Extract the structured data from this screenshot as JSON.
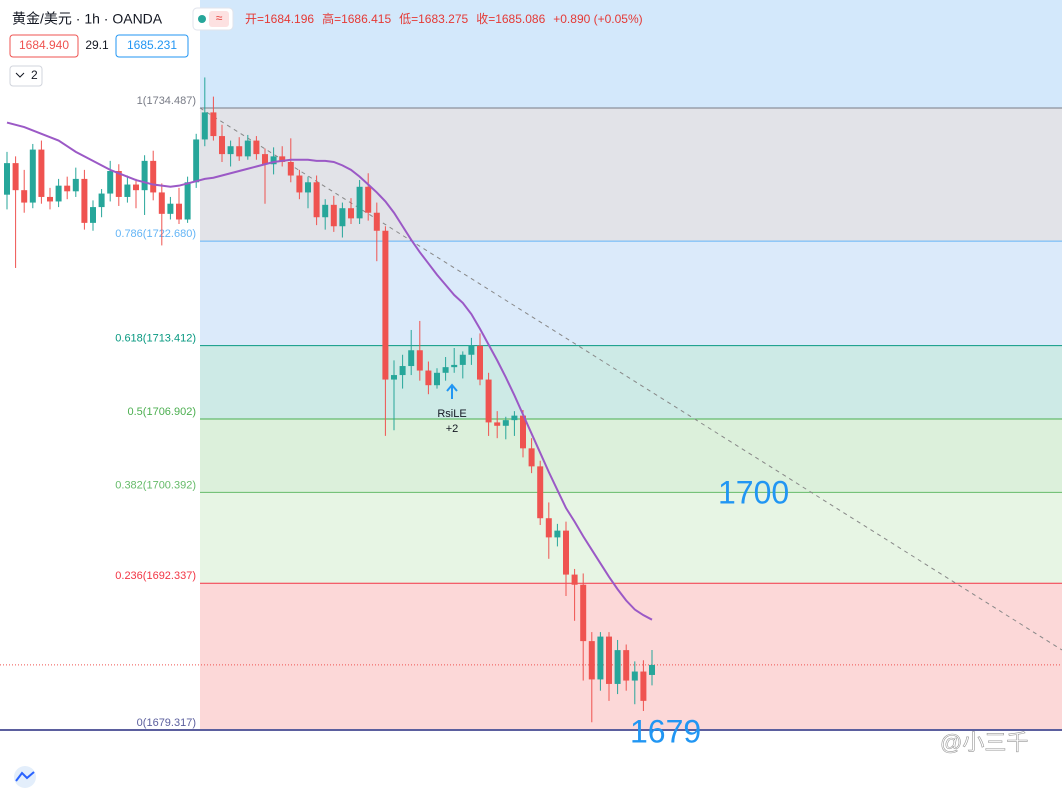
{
  "chart_data": {
    "type": "candlestick",
    "title": "黄金/美元 · 1h · OANDA",
    "stats": [
      "开=1684.196",
      "高=1686.415",
      "低=1683.275",
      "收=1685.086",
      "+0.890 (+0.05%)"
    ],
    "sell_price": "1684.940",
    "spread": "29.1",
    "buy_price": "1685.231",
    "indicator_count": "2",
    "ylim": [
      1674.08,
      1744.07
    ],
    "up_color": "#26a69a",
    "down_color": "#ef5350",
    "open": [
      1726.8,
      1729.6,
      1727.2,
      1726.1,
      1730.8,
      1726.6,
      1726.2,
      1727.6,
      1727.1,
      1728.2,
      1724.3,
      1725.7,
      1726.9,
      1728.9,
      1726.6,
      1727.7,
      1727.2,
      1729.8,
      1727.0,
      1725.1,
      1726.0,
      1724.6,
      1727.9,
      1731.7,
      1734.1,
      1732.0,
      1730.4,
      1731.1,
      1730.2,
      1731.6,
      1730.4,
      1729.5,
      1730.2,
      1729.7,
      1728.5,
      1727.0,
      1727.9,
      1724.8,
      1725.9,
      1724.0,
      1725.6,
      1724.7,
      1727.5,
      1725.2,
      1723.6,
      1710.4,
      1710.8,
      1711.6,
      1713.0,
      1711.2,
      1709.9,
      1711.0,
      1711.5,
      1711.7,
      1712.6,
      1713.4,
      1710.4,
      1706.6,
      1706.3,
      1706.8,
      1707.2,
      1704.3,
      1702.7,
      1698.1,
      1696.4,
      1697.0,
      1693.1,
      1692.2,
      1687.2,
      1683.8,
      1687.6,
      1683.4,
      1686.4,
      1683.7,
      1684.5,
      1684.196
    ],
    "high": [
      1730.6,
      1730.2,
      1729.0,
      1731.3,
      1731.6,
      1727.4,
      1728.2,
      1728.4,
      1729.2,
      1729.0,
      1726.3,
      1727.3,
      1729.8,
      1729.5,
      1728.5,
      1728.2,
      1730.3,
      1730.7,
      1727.8,
      1726.6,
      1727.4,
      1728.4,
      1732.2,
      1737.2,
      1735.5,
      1733.0,
      1731.6,
      1731.9,
      1732.1,
      1732.0,
      1730.9,
      1731.0,
      1731.1,
      1731.8,
      1729.0,
      1728.4,
      1728.5,
      1726.4,
      1726.7,
      1726.1,
      1726.5,
      1728.1,
      1728.7,
      1726.1,
      1724.0,
      1712.1,
      1712.6,
      1714.8,
      1715.6,
      1712.0,
      1711.4,
      1712.4,
      1713.2,
      1712.9,
      1714.1,
      1714.5,
      1711.0,
      1707.6,
      1707.1,
      1707.6,
      1707.7,
      1705.2,
      1703.2,
      1699.5,
      1697.6,
      1697.8,
      1693.6,
      1693.2,
      1688.0,
      1688.0,
      1688.0,
      1687.3,
      1686.9,
      1685.4,
      1685.5,
      1686.415
    ],
    "low": [
      1725.5,
      1720.3,
      1725.2,
      1725.6,
      1726.0,
      1725.5,
      1725.7,
      1726.4,
      1726.6,
      1723.7,
      1723.6,
      1724.8,
      1726.2,
      1725.8,
      1726.1,
      1725.6,
      1725.0,
      1726.3,
      1722.3,
      1724.6,
      1724.2,
      1724.3,
      1727.4,
      1731.1,
      1731.6,
      1729.7,
      1729.3,
      1729.8,
      1729.9,
      1729.9,
      1726.0,
      1728.6,
      1729.3,
      1727.9,
      1726.4,
      1725.6,
      1724.1,
      1723.7,
      1723.5,
      1723.0,
      1724.2,
      1724.2,
      1724.5,
      1720.9,
      1705.4,
      1705.9,
      1709.6,
      1710.8,
      1710.3,
      1709.1,
      1709.6,
      1710.3,
      1711.0,
      1710.5,
      1711.7,
      1709.9,
      1705.4,
      1705.2,
      1705.1,
      1705.4,
      1703.5,
      1702.1,
      1697.5,
      1694.5,
      1695.6,
      1691.2,
      1689.0,
      1683.7,
      1680.0,
      1682.8,
      1681.9,
      1682.5,
      1682.8,
      1681.6,
      1681.0,
      1683.275
    ],
    "close": [
      1729.6,
      1727.2,
      1726.1,
      1730.8,
      1726.6,
      1726.2,
      1727.6,
      1727.1,
      1728.2,
      1724.3,
      1725.7,
      1726.9,
      1728.9,
      1726.6,
      1727.7,
      1727.2,
      1729.8,
      1727.0,
      1725.1,
      1726.0,
      1724.6,
      1727.9,
      1731.7,
      1734.1,
      1732.0,
      1730.4,
      1731.1,
      1730.2,
      1731.6,
      1730.4,
      1729.5,
      1730.2,
      1729.7,
      1728.5,
      1727.0,
      1727.9,
      1724.8,
      1725.9,
      1724.0,
      1725.6,
      1724.7,
      1727.5,
      1725.2,
      1723.6,
      1710.4,
      1710.8,
      1711.6,
      1713.0,
      1711.2,
      1709.9,
      1711.0,
      1711.5,
      1711.7,
      1712.6,
      1713.4,
      1710.4,
      1706.6,
      1706.3,
      1706.8,
      1707.2,
      1704.3,
      1702.7,
      1698.1,
      1696.4,
      1697.0,
      1693.1,
      1692.2,
      1687.2,
      1683.8,
      1687.6,
      1683.4,
      1686.4,
      1683.7,
      1684.5,
      1681.9,
      1685.086
    ],
    "ma_color": "#9b59c6",
    "ma_values": [
      1733.2,
      1733.0,
      1732.8,
      1732.5,
      1732.2,
      1731.9,
      1731.6,
      1731.1,
      1730.6,
      1730.2,
      1729.8,
      1729.4,
      1729.0,
      1728.7,
      1728.4,
      1728.1,
      1727.9,
      1727.7,
      1727.6,
      1727.5,
      1727.6,
      1727.8,
      1728.0,
      1728.2,
      1728.3,
      1728.5,
      1728.7,
      1728.9,
      1729.1,
      1729.3,
      1729.5,
      1729.7,
      1729.8,
      1729.9,
      1729.9,
      1729.9,
      1729.8,
      1729.8,
      1729.7,
      1729.4,
      1729.0,
      1728.4,
      1727.7,
      1727.0,
      1726.2,
      1725.2,
      1724.0,
      1722.8,
      1721.7,
      1720.7,
      1719.7,
      1718.8,
      1717.9,
      1717.2,
      1716.2,
      1714.9,
      1713.5,
      1712.1,
      1710.6,
      1709.0,
      1707.3,
      1705.6,
      1703.9,
      1702.2,
      1700.6,
      1699.0,
      1697.8,
      1696.5,
      1695.3,
      1694.1,
      1692.9,
      1691.8,
      1690.8,
      1690.0,
      1689.5,
      1689.1
    ],
    "fib_levels": [
      {
        "value": 1734.487,
        "label": "1(1734.487)"
      },
      {
        "value": 1722.68,
        "label": "0.786(1722.680)"
      },
      {
        "value": 1713.412,
        "label": "0.618(1713.412)"
      },
      {
        "value": 1706.902,
        "label": "0.5(1706.902)"
      },
      {
        "value": 1700.392,
        "label": "0.382(1700.392)"
      },
      {
        "value": 1692.337,
        "label": "0.236(1692.337)"
      },
      {
        "value": 1679.317,
        "label": "0(1679.317)"
      }
    ],
    "fib_colors": [
      "#787b86",
      "#64b5f6",
      "#089981",
      "#4caf50",
      "#66bb6a",
      "#f23645",
      "#5b5f9e"
    ],
    "fib_fills": [
      "#e2e3e8",
      "#dbeafa",
      "#cdeae6",
      "#dcf0db",
      "#e7f5e4",
      "#fcd8d8"
    ],
    "top_fill": "#d3e8fb",
    "annotations": [
      "1700",
      "1679"
    ],
    "signal": [
      "RsiLE",
      "+2"
    ],
    "watermark": "@小三千"
  }
}
